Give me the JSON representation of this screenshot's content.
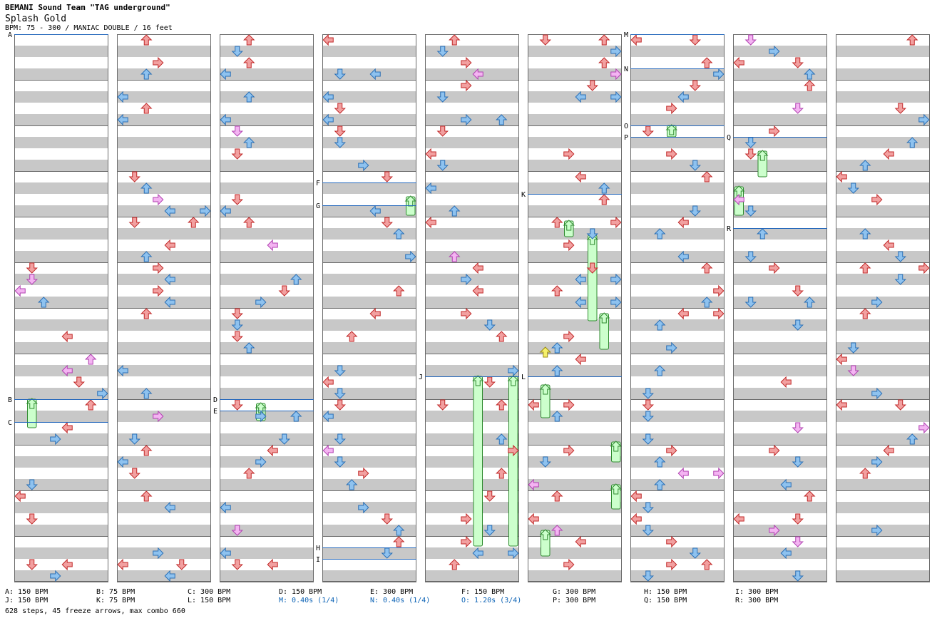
{
  "header": {
    "artist": "BEMANI Sound Team \"TAG underground\"",
    "title": "Splash Gold",
    "info": "BPM: 75 - 300 / MANIAC DOUBLE / 16 feet"
  },
  "colors": {
    "red_arrow": "#f2a0a0",
    "red_arrow_border": "#c02828",
    "blue_arrow": "#8ec2ef",
    "blue_arrow_border": "#2a6fb5",
    "pink_arrow": "#f4b4f2",
    "pink_arrow_border": "#b040b0",
    "yellow_arrow": "#f5f06a",
    "freeze_fill": "#ccffcc",
    "freeze_border": "#2f8a2f",
    "stripe": "#c8c8c8",
    "marker_line": "#2266bb",
    "stop_text": "#0b62b5"
  },
  "section_markers": [
    {
      "label": "A"
    },
    {
      "label": "B"
    },
    {
      "label": "C"
    },
    {
      "label": "D"
    },
    {
      "label": "E"
    },
    {
      "label": "F"
    },
    {
      "label": "G"
    },
    {
      "label": "H"
    },
    {
      "label": "I"
    },
    {
      "label": "J"
    },
    {
      "label": "K"
    },
    {
      "label": "L"
    },
    {
      "label": "M"
    },
    {
      "label": "N"
    },
    {
      "label": "O"
    },
    {
      "label": "P"
    },
    {
      "label": "Q"
    },
    {
      "label": "R"
    }
  ],
  "legend": [
    {
      "text": "A: 150 BPM",
      "stop": false
    },
    {
      "text": "B: 75 BPM",
      "stop": false
    },
    {
      "text": "C: 300 BPM",
      "stop": false
    },
    {
      "text": "D: 150 BPM",
      "stop": false
    },
    {
      "text": "E: 300 BPM",
      "stop": false
    },
    {
      "text": "F: 150 BPM",
      "stop": false
    },
    {
      "text": "G: 300 BPM",
      "stop": false
    },
    {
      "text": "H: 150 BPM",
      "stop": false
    },
    {
      "text": "I: 300 BPM",
      "stop": false
    },
    {
      "text": "J: 150 BPM",
      "stop": false
    },
    {
      "text": "K: 75 BPM",
      "stop": false
    },
    {
      "text": "L: 150 BPM",
      "stop": false
    },
    {
      "text": "M: 0.40s (1/4)",
      "stop": true
    },
    {
      "text": "N: 0.40s (1/4)",
      "stop": true
    },
    {
      "text": "O: 1.20s (3/4)",
      "stop": true
    },
    {
      "text": "P: 300 BPM",
      "stop": false
    },
    {
      "text": "Q: 150 BPM",
      "stop": false
    },
    {
      "text": "R: 300 BPM",
      "stop": false
    }
  ],
  "stats": "628 steps, 45 freeze arrows, max combo 660"
}
